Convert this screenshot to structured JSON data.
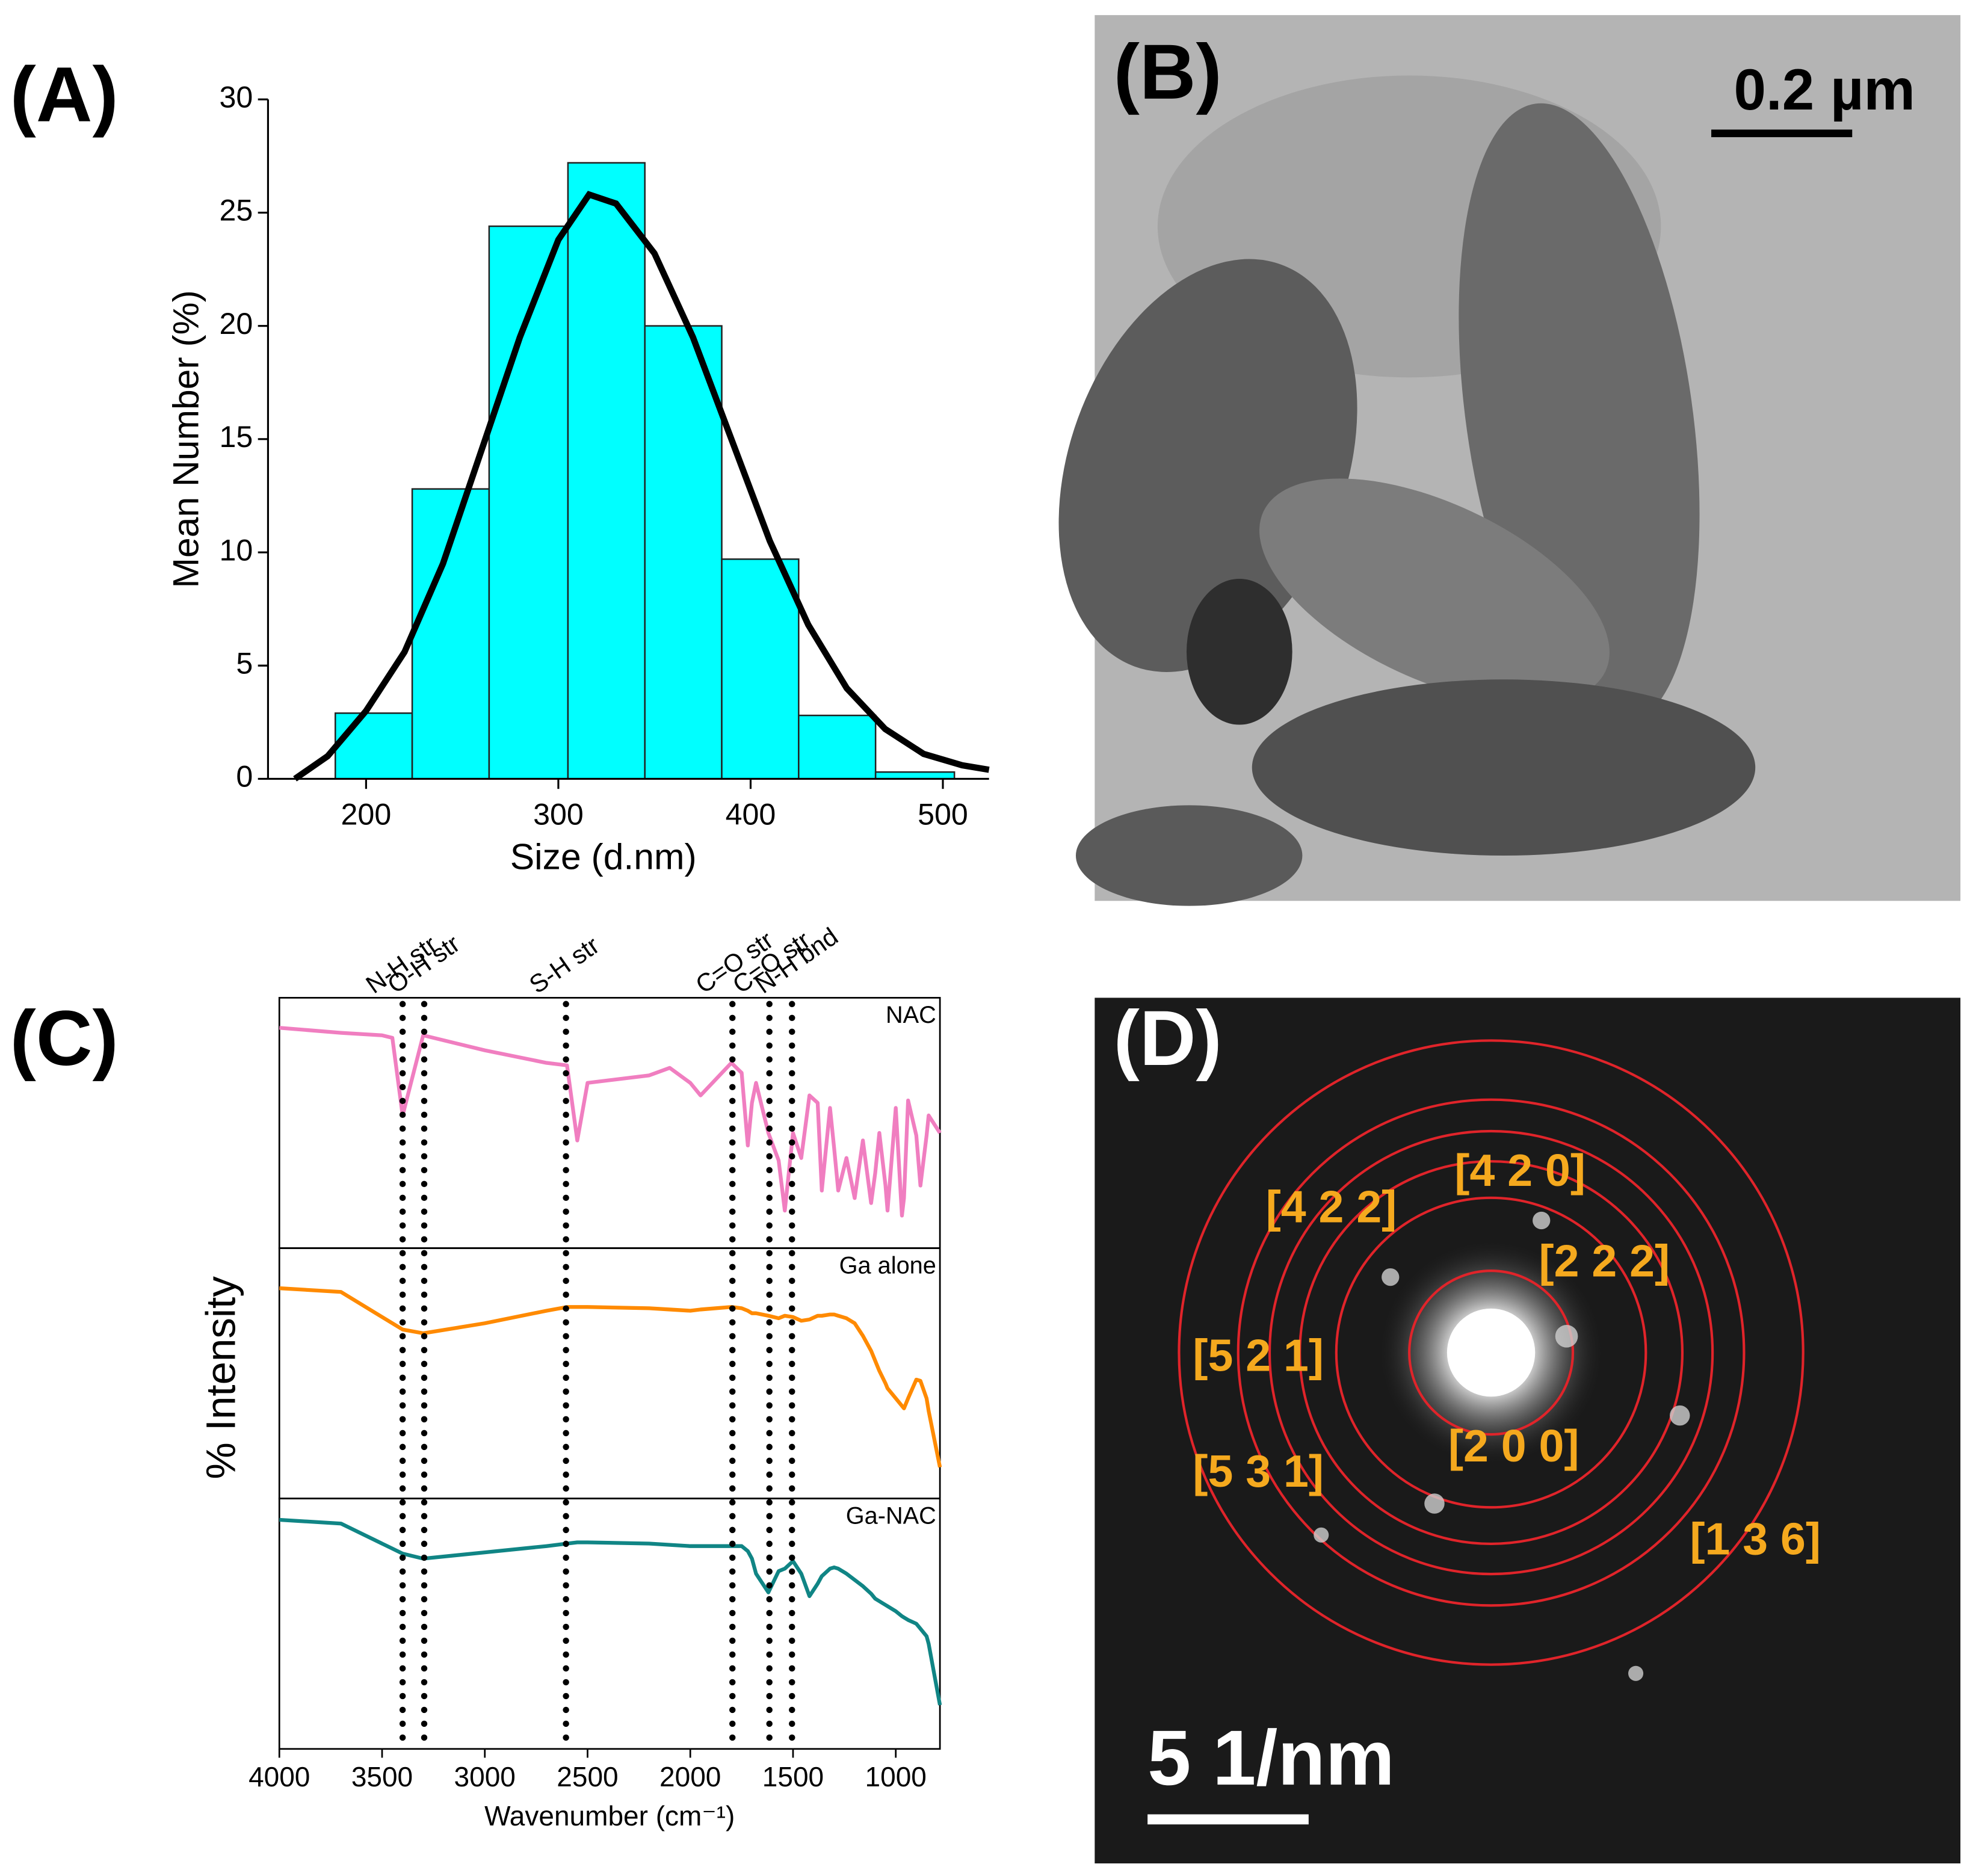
{
  "figure": {
    "panel_labels": [
      "(A)",
      "(B)",
      "(C)",
      "(D)"
    ]
  },
  "chart_data": [
    {
      "type": "histogram",
      "x_label": "Size (d.nm)",
      "y_label": "Mean Number (%)",
      "bins": [
        184,
        224,
        264,
        305,
        345,
        385,
        425,
        465,
        506
      ],
      "values": [
        2.9,
        12.8,
        24.4,
        27.2,
        20,
        9.7,
        2.8,
        0.3
      ],
      "color": "#00ffff",
      "fit": {
        "color": "#000000",
        "x": [
          163,
          180,
          200,
          220,
          240,
          260,
          280,
          300,
          316,
          330,
          350,
          370,
          390,
          410,
          430,
          450,
          470,
          490,
          510,
          524
        ],
        "values": [
          0,
          1.0,
          3.0,
          5.6,
          9.5,
          14.5,
          19.5,
          23.8,
          25.8,
          25.4,
          23.2,
          19.5,
          15.0,
          10.5,
          6.8,
          4.0,
          2.2,
          1.1,
          0.6,
          0.4
        ]
      },
      "xlim": [
        149,
        524
      ],
      "xticks": [
        200,
        300,
        400,
        500
      ],
      "ylim": [
        0,
        30
      ],
      "yticks": [
        0,
        5,
        10,
        15,
        20,
        25,
        30
      ]
    },
    {
      "type": "line",
      "stacked_panels": true,
      "x_label": "Wavenumber (cm⁻¹)",
      "y_label": "% Intensity",
      "x": [
        4000,
        3700,
        3500,
        3450,
        3400,
        3300,
        3000,
        2700,
        2600,
        2550,
        2500,
        2200,
        2100,
        2000,
        1950,
        1800,
        1750,
        1720,
        1700,
        1680,
        1620,
        1570,
        1540,
        1500,
        1460,
        1420,
        1380,
        1360,
        1320,
        1300,
        1280,
        1240,
        1200,
        1160,
        1120,
        1100,
        1080,
        1050,
        1040,
        1000,
        970,
        960,
        940,
        900,
        880,
        850,
        840,
        785
      ],
      "series": [
        {
          "name": "NAC",
          "color": "#f07ec0",
          "values": [
            88,
            86,
            85,
            84,
            53,
            85,
            79,
            74,
            73,
            43,
            66,
            69,
            72,
            66,
            61,
            74,
            70,
            41,
            58,
            66,
            46,
            35,
            15,
            46,
            36,
            61,
            58,
            23,
            56,
            40,
            23,
            36,
            20,
            43,
            18,
            30,
            46,
            25,
            15,
            56,
            13,
            20,
            59,
            45,
            25,
            45,
            53,
            46
          ]
        },
        {
          "name": "Ga alone",
          "color": "#ff8a00",
          "values": [
            84,
            82.5,
            72.5,
            70,
            67.5,
            66,
            70,
            75,
            76.5,
            76.5,
            76.5,
            76,
            75.5,
            75,
            75.5,
            76.5,
            76,
            75,
            74,
            74,
            73,
            72,
            73,
            72.5,
            71,
            71.5,
            73,
            73,
            73.5,
            73.5,
            73,
            72,
            70,
            65,
            59,
            55,
            51,
            46,
            44,
            40,
            37,
            36,
            40,
            47.5,
            47,
            40,
            35,
            12.5
          ]
        },
        {
          "name": "Ga-NAC",
          "color": "#108585",
          "values": [
            91.5,
            90,
            82,
            80,
            78,
            76,
            78.5,
            81,
            82,
            82.5,
            82.5,
            82,
            81.5,
            81,
            81,
            81,
            81,
            79,
            76,
            70,
            62.5,
            71,
            72,
            75,
            70,
            61,
            66,
            69,
            72,
            72.5,
            72,
            70,
            67.5,
            65,
            62,
            60,
            59,
            57.5,
            57,
            55,
            53,
            52.5,
            51.5,
            50,
            48,
            45,
            42,
            17.5
          ]
        }
      ],
      "annotations": [
        {
          "label": "N-H str",
          "x": 3400
        },
        {
          "label": "O-H str",
          "x": 3295
        },
        {
          "label": "S-H str",
          "x": 2605
        },
        {
          "label": "C=O str",
          "x": 1795
        },
        {
          "label": "C=O str",
          "x": 1615
        },
        {
          "label": "N-H bnd",
          "x": 1505
        }
      ],
      "xlim": [
        4000,
        785
      ],
      "xticks": [
        4000,
        3500,
        3000,
        2500,
        2000,
        1500,
        1000
      ],
      "ylim": [
        0,
        100
      ]
    }
  ],
  "images": {
    "tem": {
      "scale_bar": "0.2 µm"
    },
    "saed": {
      "scale_bar": "5 1/nm",
      "ring_labels": [
        "[4 2 0]",
        "[4 2 2]",
        "[2 2 2]",
        "[5 2 1]",
        "[2 0 0]",
        "[5 3 1]",
        "[1 3 6]"
      ]
    }
  }
}
